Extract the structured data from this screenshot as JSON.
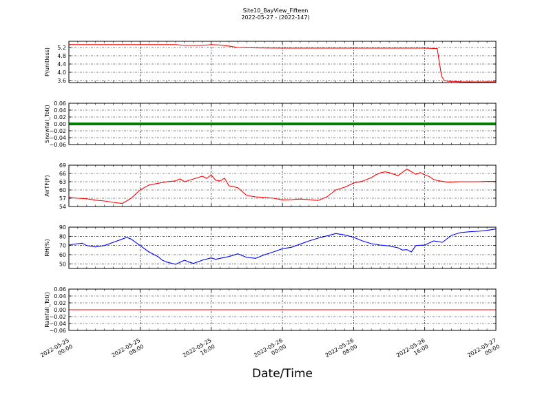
{
  "figure": {
    "title": "Site10_BayView_Fifteen",
    "subtitle": "2022-05-27 - (2022-147)",
    "xlabel": "Date/Time"
  },
  "chart_data": [
    {
      "type": "line",
      "ylabel": "P(unitless)",
      "ylim": [
        3.5,
        5.5
      ],
      "yticks": [
        "3.6",
        "4.0",
        "4.4",
        "4.8",
        "5.2"
      ],
      "yticks_values": [
        3.6,
        4.0,
        4.4,
        4.8,
        5.2
      ],
      "grid": true,
      "color": "#ff0000",
      "x_hours": [
        0,
        6,
        9,
        12,
        13,
        15,
        16,
        17,
        18,
        19,
        21,
        24,
        28,
        32,
        36,
        38,
        40,
        41,
        41.4,
        41.6,
        41.9,
        42.2,
        42.6,
        43,
        44,
        46,
        48
      ],
      "values": [
        5.34,
        5.34,
        5.34,
        5.34,
        5.3,
        5.3,
        5.34,
        5.32,
        5.27,
        5.2,
        5.18,
        5.17,
        5.17,
        5.17,
        5.17,
        5.17,
        5.17,
        5.15,
        5.15,
        4.6,
        3.8,
        3.6,
        3.56,
        3.56,
        3.54,
        3.53,
        3.54
      ]
    },
    {
      "type": "line",
      "ylabel": "Snowfall_Tot()",
      "ylim": [
        -0.06,
        0.06
      ],
      "yticks": [
        "−0.06",
        "−0.04",
        "−0.02",
        "0.00",
        "0.02",
        "0.04",
        "0.06"
      ],
      "yticks_values": [
        -0.06,
        -0.04,
        -0.02,
        0.0,
        0.02,
        0.04,
        0.06
      ],
      "grid": true,
      "color": "#008000",
      "x_hours": [
        0,
        48
      ],
      "values": [
        0,
        0
      ]
    },
    {
      "type": "line",
      "ylabel": "AirTF(F)",
      "ylim": [
        54,
        69
      ],
      "yticks": [
        "54",
        "57",
        "60",
        "63",
        "66",
        "69"
      ],
      "yticks_values": [
        54,
        57,
        60,
        63,
        66,
        69
      ],
      "grid": true,
      "color": "#ff0000",
      "x_hours": [
        0,
        1,
        2,
        3,
        4,
        5,
        6,
        7,
        8,
        9,
        10,
        11,
        12,
        12.5,
        13,
        14,
        15,
        15.5,
        16,
        16.5,
        17,
        17.5,
        18,
        18.5,
        19,
        20,
        21,
        22,
        23,
        24,
        25,
        26,
        27,
        28,
        29,
        30,
        31,
        32,
        33,
        34,
        34.5,
        35,
        35.5,
        36,
        37,
        38,
        39,
        39.5,
        40,
        40.5,
        41,
        41.5,
        42,
        42.5,
        43,
        44,
        45,
        46,
        47,
        48
      ],
      "values": [
        57.3,
        57,
        56.8,
        56.3,
        56,
        55.5,
        55.1,
        57,
        60,
        61.8,
        62.4,
        63,
        63.3,
        64,
        63,
        64,
        65,
        64.2,
        65.5,
        63.5,
        63.3,
        64.3,
        61.5,
        61.2,
        60.8,
        58,
        57.5,
        57.3,
        57,
        56.4,
        56.5,
        56.7,
        56.5,
        56.2,
        57.5,
        60,
        61,
        62.5,
        63.2,
        64.5,
        65.5,
        66.2,
        66.6,
        66.3,
        65.2,
        67.6,
        65.7,
        66.3,
        65.5,
        64.9,
        63.8,
        63.4,
        63.1,
        62.9,
        62.9,
        63,
        63,
        63,
        63.1,
        63.1
      ]
    },
    {
      "type": "line",
      "ylabel": "RH(%)",
      "ylim": [
        45,
        90
      ],
      "yticks": [
        "50",
        "60",
        "70",
        "80",
        "90"
      ],
      "yticks_values": [
        50,
        60,
        70,
        80,
        90
      ],
      "grid": true,
      "color": "#0000ff",
      "x_hours": [
        0,
        1,
        1.5,
        2,
        3,
        4,
        5,
        6,
        6.5,
        7,
        8,
        9,
        10,
        10.5,
        11,
        12,
        13,
        13.5,
        14,
        15,
        16,
        16.5,
        17,
        18,
        19,
        20,
        21,
        22,
        23,
        24,
        25,
        26,
        27,
        28,
        29,
        30,
        31,
        32,
        33,
        34,
        35,
        36,
        37,
        37.5,
        38,
        38.5,
        39,
        40,
        41,
        42,
        43,
        44,
        45,
        46,
        47,
        48
      ],
      "values": [
        70.5,
        72,
        72.5,
        70,
        68.5,
        70,
        73.5,
        77,
        78.8,
        77,
        70,
        63,
        58,
        54,
        52,
        49.5,
        54,
        52,
        50.5,
        54,
        56.5,
        55,
        56,
        58,
        61,
        57,
        56,
        60,
        63,
        66.5,
        68,
        71.5,
        75,
        78,
        80.5,
        83,
        81.5,
        79,
        75,
        72,
        70.5,
        69.5,
        67.5,
        65,
        65.5,
        63,
        70,
        70.5,
        75,
        73.5,
        81,
        84,
        85,
        85.5,
        86.5,
        88
      ]
    },
    {
      "type": "line",
      "ylabel": "Rainfall_Tot()",
      "ylim": [
        -0.06,
        0.06
      ],
      "yticks": [
        "−0.06",
        "−0.04",
        "−0.02",
        "0.00",
        "0.02",
        "0.04",
        "0.06"
      ],
      "yticks_values": [
        -0.06,
        -0.04,
        -0.02,
        0.0,
        0.02,
        0.04,
        0.06
      ],
      "grid": true,
      "color": "#ff0000",
      "x_hours": [
        0,
        48
      ],
      "values": [
        0,
        0
      ]
    }
  ],
  "x_axis": {
    "range_hours": [
      0,
      48
    ],
    "ticks_hours": [
      0,
      8,
      16,
      24,
      32,
      40,
      48
    ],
    "tick_labels": [
      [
        "2022-05-25",
        "00:00"
      ],
      [
        "2022-05-25",
        "08:00"
      ],
      [
        "2022-05-25",
        "16:00"
      ],
      [
        "2022-05-26",
        "00:00"
      ],
      [
        "2022-05-26",
        "08:00"
      ],
      [
        "2022-05-26",
        "16:00"
      ],
      [
        "2022-05-27",
        "00:00"
      ]
    ]
  }
}
